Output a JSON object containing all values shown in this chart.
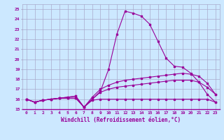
{
  "xlabel": "Windchill (Refroidissement éolien,°C)",
  "x_values": [
    0,
    1,
    2,
    3,
    4,
    5,
    6,
    7,
    8,
    9,
    10,
    11,
    12,
    13,
    14,
    15,
    16,
    17,
    18,
    19,
    20,
    21,
    22,
    23
  ],
  "line1": [
    16.0,
    15.7,
    15.9,
    16.0,
    16.1,
    16.1,
    16.1,
    15.2,
    15.9,
    16.0,
    16.0,
    16.0,
    16.0,
    16.0,
    16.0,
    16.0,
    16.0,
    16.0,
    16.0,
    16.0,
    16.0,
    16.0,
    16.0,
    15.7
  ],
  "line2": [
    16.0,
    15.7,
    15.9,
    16.0,
    16.1,
    16.1,
    16.1,
    15.2,
    16.0,
    16.8,
    19.0,
    22.5,
    24.8,
    24.6,
    24.3,
    23.5,
    21.8,
    20.1,
    19.3,
    19.2,
    18.6,
    17.7,
    16.5,
    15.7
  ],
  "line3": [
    16.0,
    15.7,
    15.9,
    16.0,
    16.1,
    16.2,
    16.3,
    15.2,
    16.2,
    17.0,
    17.4,
    17.7,
    17.9,
    18.0,
    18.1,
    18.2,
    18.3,
    18.4,
    18.5,
    18.6,
    18.5,
    18.3,
    17.6,
    16.5
  ],
  "line4": [
    16.0,
    15.7,
    15.9,
    16.0,
    16.1,
    16.2,
    16.3,
    15.2,
    16.0,
    16.7,
    17.0,
    17.2,
    17.3,
    17.4,
    17.5,
    17.6,
    17.7,
    17.8,
    17.9,
    17.9,
    17.9,
    17.7,
    17.2,
    16.5
  ],
  "line_color": "#990099",
  "bg_color": "#cce8ff",
  "grid_color": "#aaaacc",
  "ylim": [
    15.0,
    25.5
  ],
  "yticks": [
    15,
    16,
    17,
    18,
    19,
    20,
    21,
    22,
    23,
    24,
    25
  ],
  "xticks": [
    0,
    1,
    2,
    3,
    4,
    5,
    6,
    7,
    8,
    9,
    10,
    11,
    12,
    13,
    14,
    15,
    16,
    17,
    18,
    19,
    20,
    21,
    22,
    23
  ]
}
